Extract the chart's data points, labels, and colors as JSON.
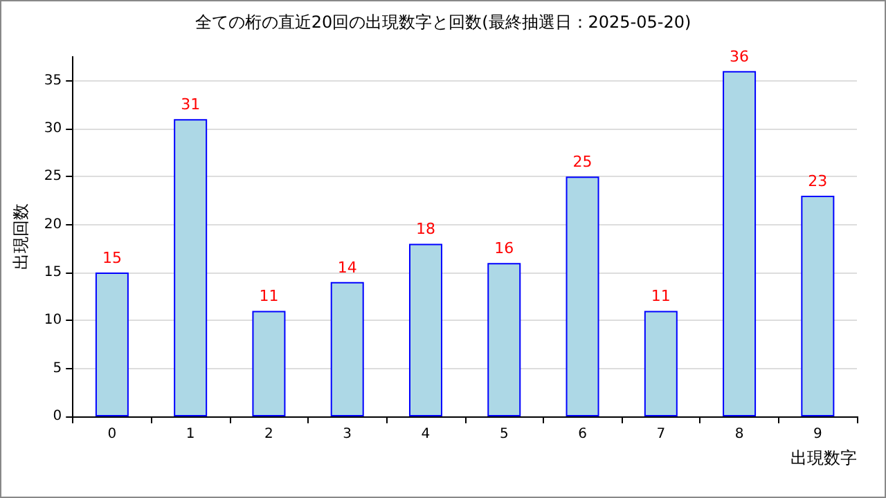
{
  "chart_data": {
    "type": "bar",
    "title": "全ての桁の直近20回の出現数字と回数(最終抽選日：2025-05-20)",
    "xlabel": "出現数字",
    "ylabel": "出現回数",
    "categories": [
      "0",
      "1",
      "2",
      "3",
      "4",
      "5",
      "6",
      "7",
      "8",
      "9"
    ],
    "values": [
      15,
      31,
      11,
      14,
      18,
      16,
      25,
      11,
      36,
      23
    ],
    "color": "#add8e6",
    "data_labels": true,
    "ylim": [
      0,
      37.5
    ],
    "yticks": [
      0,
      5,
      10,
      15,
      20,
      25,
      30,
      35
    ],
    "grid": "y"
  }
}
